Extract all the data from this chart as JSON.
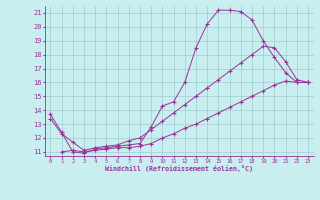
{
  "xlabel": "Windchill (Refroidissement éolien,°C)",
  "xlim": [
    -0.5,
    23.5
  ],
  "ylim": [
    10.7,
    21.5
  ],
  "yticks": [
    11,
    12,
    13,
    14,
    15,
    16,
    17,
    18,
    19,
    20,
    21
  ],
  "xticks": [
    0,
    1,
    2,
    3,
    4,
    5,
    6,
    7,
    8,
    9,
    10,
    11,
    12,
    13,
    14,
    15,
    16,
    17,
    18,
    19,
    20,
    21,
    22,
    23
  ],
  "bg_color": "#c8eef0",
  "grid_color": "#a0ccd0",
  "line_color": "#993399",
  "line1_x": [
    0,
    1,
    2,
    3,
    4,
    5,
    6,
    7,
    8,
    9,
    10,
    11,
    12,
    13,
    14,
    15,
    16,
    17,
    18,
    19,
    20,
    21,
    22,
    23
  ],
  "line1_y": [
    13.7,
    12.4,
    11.0,
    10.9,
    11.2,
    11.3,
    11.4,
    11.5,
    11.6,
    12.8,
    14.3,
    14.6,
    16.0,
    18.5,
    20.2,
    21.2,
    21.2,
    21.1,
    20.5,
    19.0,
    17.8,
    16.7,
    16.0,
    16.0
  ],
  "line2_x": [
    0,
    1,
    2,
    3,
    4,
    5,
    6,
    7,
    8,
    9,
    10,
    11,
    12,
    13,
    14,
    15,
    16,
    17,
    18,
    19,
    20,
    21,
    22,
    23
  ],
  "line2_y": [
    13.4,
    12.3,
    11.7,
    11.1,
    11.3,
    11.4,
    11.5,
    11.8,
    12.0,
    12.6,
    13.2,
    13.8,
    14.4,
    15.0,
    15.6,
    16.2,
    16.8,
    17.4,
    18.0,
    18.6,
    18.5,
    17.5,
    16.2,
    16.0
  ],
  "line3_x": [
    1,
    2,
    3,
    4,
    5,
    6,
    7,
    8,
    9,
    10,
    11,
    12,
    13,
    14,
    15,
    16,
    17,
    18,
    19,
    20,
    21,
    22,
    23
  ],
  "line3_y": [
    11.0,
    11.1,
    11.0,
    11.1,
    11.2,
    11.3,
    11.3,
    11.4,
    11.6,
    12.0,
    12.3,
    12.7,
    13.0,
    13.4,
    13.8,
    14.2,
    14.6,
    15.0,
    15.4,
    15.8,
    16.1,
    16.0,
    16.0
  ]
}
